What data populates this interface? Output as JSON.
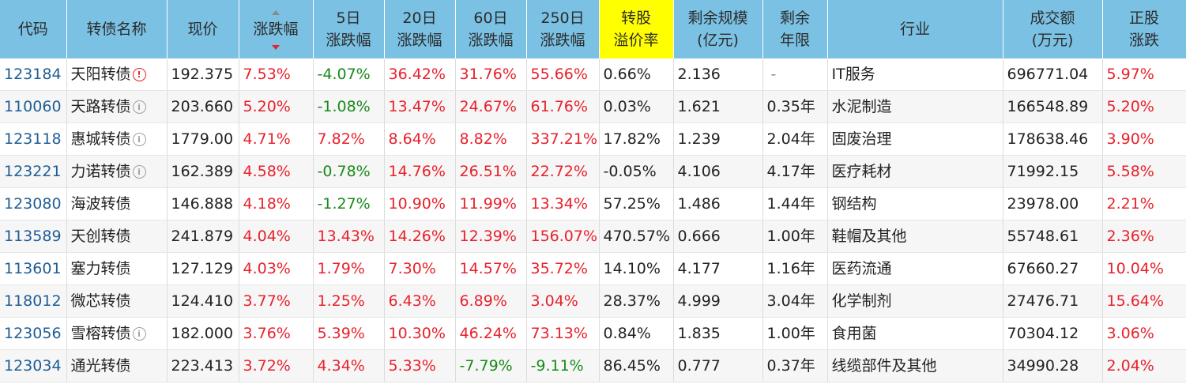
{
  "columns": [
    {
      "key": "code",
      "lines": [
        "代码"
      ]
    },
    {
      "key": "name",
      "lines": [
        "转债名称"
      ]
    },
    {
      "key": "price",
      "lines": [
        "现价"
      ]
    },
    {
      "key": "change",
      "lines": [
        "涨跌幅"
      ],
      "sorted": "desc"
    },
    {
      "key": "d5",
      "lines": [
        "5日",
        "涨跌幅"
      ]
    },
    {
      "key": "d20",
      "lines": [
        "20日",
        "涨跌幅"
      ]
    },
    {
      "key": "d60",
      "lines": [
        "60日",
        "涨跌幅"
      ]
    },
    {
      "key": "d250",
      "lines": [
        "250日",
        "涨跌幅"
      ]
    },
    {
      "key": "premium",
      "lines": [
        "转股",
        "溢价率"
      ],
      "highlight": true
    },
    {
      "key": "scale",
      "lines": [
        "剩余规模",
        "(亿元)"
      ]
    },
    {
      "key": "years",
      "lines": [
        "剩余",
        "年限"
      ]
    },
    {
      "key": "industry",
      "lines": [
        "行业"
      ]
    },
    {
      "key": "volume",
      "lines": [
        "成交额",
        "(万元)"
      ]
    },
    {
      "key": "stock_change",
      "lines": [
        "正股",
        "涨跌"
      ]
    }
  ],
  "colors": {
    "header_bg": "#7ac1e4",
    "highlight_bg": "#ffff00",
    "up": "#e8212b",
    "down": "#1a8a1a",
    "code": "#1f5e96"
  },
  "rows": [
    {
      "code": "123184",
      "name": "天阳转债",
      "icon": "alert",
      "price": "192.375",
      "change": "7.53%",
      "d5": "-4.07%",
      "d20": "36.42%",
      "d60": "31.76%",
      "d250": "55.66%",
      "premium": "0.66%",
      "scale": "2.136",
      "years": "-",
      "industry": "IT服务",
      "volume": "696771.04",
      "stock_change": "5.97%"
    },
    {
      "code": "110060",
      "name": "天路转债",
      "icon": "info",
      "price": "203.660",
      "change": "5.20%",
      "d5": "-1.08%",
      "d20": "13.47%",
      "d60": "24.67%",
      "d250": "61.76%",
      "premium": "0.03%",
      "scale": "1.621",
      "years": "0.35年",
      "industry": "水泥制造",
      "volume": "166548.89",
      "stock_change": "5.20%"
    },
    {
      "code": "123118",
      "name": "惠城转债",
      "icon": "info",
      "price": "1779.00",
      "change": "4.71%",
      "d5": "7.82%",
      "d20": "8.64%",
      "d60": "8.82%",
      "d250": "337.21%",
      "premium": "17.82%",
      "scale": "1.239",
      "years": "2.04年",
      "industry": "固废治理",
      "volume": "178638.46",
      "stock_change": "3.90%"
    },
    {
      "code": "123221",
      "name": "力诺转债",
      "icon": "info",
      "price": "162.389",
      "change": "4.58%",
      "d5": "-0.78%",
      "d20": "14.76%",
      "d60": "26.51%",
      "d250": "22.72%",
      "premium": "-0.05%",
      "scale": "4.106",
      "years": "4.17年",
      "industry": "医疗耗材",
      "volume": "71992.15",
      "stock_change": "5.58%"
    },
    {
      "code": "123080",
      "name": "海波转债",
      "icon": "",
      "price": "146.888",
      "change": "4.18%",
      "d5": "-1.27%",
      "d20": "10.90%",
      "d60": "11.99%",
      "d250": "13.34%",
      "premium": "57.25%",
      "scale": "1.486",
      "years": "1.44年",
      "industry": "钢结构",
      "volume": "23978.00",
      "stock_change": "2.21%"
    },
    {
      "code": "113589",
      "name": "天创转债",
      "icon": "",
      "price": "241.879",
      "change": "4.04%",
      "d5": "13.43%",
      "d20": "14.26%",
      "d60": "12.39%",
      "d250": "156.07%",
      "premium": "470.57%",
      "scale": "0.666",
      "years": "1.00年",
      "industry": "鞋帽及其他",
      "volume": "55748.61",
      "stock_change": "2.36%"
    },
    {
      "code": "113601",
      "name": "塞力转债",
      "icon": "",
      "price": "127.129",
      "change": "4.03%",
      "d5": "1.79%",
      "d20": "7.30%",
      "d60": "14.57%",
      "d250": "35.72%",
      "premium": "14.10%",
      "scale": "4.177",
      "years": "1.16年",
      "industry": "医药流通",
      "volume": "67660.27",
      "stock_change": "10.04%"
    },
    {
      "code": "118012",
      "name": "微芯转债",
      "icon": "",
      "price": "124.410",
      "change": "3.77%",
      "d5": "1.25%",
      "d20": "6.43%",
      "d60": "6.89%",
      "d250": "3.04%",
      "premium": "28.37%",
      "scale": "4.999",
      "years": "3.04年",
      "industry": "化学制剂",
      "volume": "27476.71",
      "stock_change": "15.64%"
    },
    {
      "code": "123056",
      "name": "雪榕转债",
      "icon": "info",
      "price": "182.000",
      "change": "3.76%",
      "d5": "5.39%",
      "d20": "10.30%",
      "d60": "46.24%",
      "d250": "73.13%",
      "premium": "0.84%",
      "scale": "1.835",
      "years": "1.00年",
      "industry": "食用菌",
      "volume": "70304.12",
      "stock_change": "3.06%"
    },
    {
      "code": "123034",
      "name": "通光转债",
      "icon": "",
      "price": "223.413",
      "change": "3.72%",
      "d5": "4.34%",
      "d20": "5.33%",
      "d60": "-7.79%",
      "d250": "-9.11%",
      "premium": "86.45%",
      "scale": "0.777",
      "years": "0.37年",
      "industry": "线缆部件及其他",
      "volume": "34990.28",
      "stock_change": "2.04%"
    }
  ]
}
